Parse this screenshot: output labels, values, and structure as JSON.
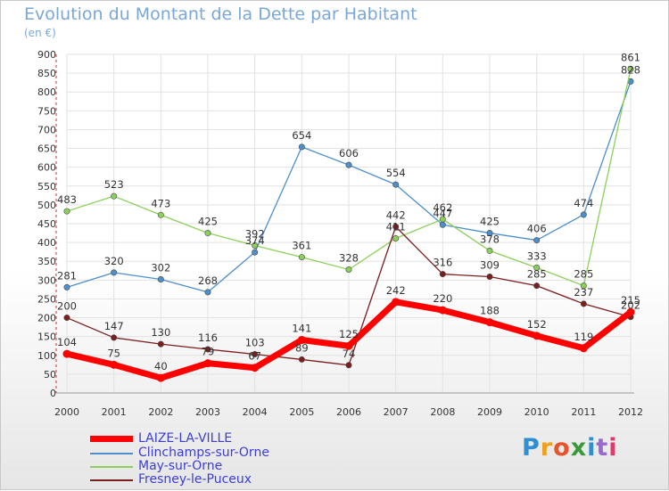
{
  "title": "Evolution du Montant de la Dette par Habitant",
  "unit": "(en €)",
  "logo": "Proxiti",
  "chart_data": {
    "type": "line",
    "title": "Evolution du Montant de la Dette par Habitant",
    "ylabel": "(en €)",
    "xlabel": "",
    "ylim": [
      0,
      900
    ],
    "y_ticks": [
      0,
      50,
      100,
      150,
      200,
      250,
      300,
      350,
      400,
      450,
      500,
      550,
      600,
      650,
      700,
      750,
      800,
      850,
      900
    ],
    "grid": true,
    "legend_position": "bottom-left",
    "x": [
      "2000",
      "2001",
      "2002",
      "2003",
      "2004",
      "2005",
      "2006",
      "2007",
      "2008",
      "2009",
      "2010",
      "2011",
      "2012"
    ],
    "series": [
      {
        "name": "LAIZE-LA-VILLE",
        "color": "#ff0000",
        "values": [
          104,
          75,
          40,
          79,
          67,
          141,
          125,
          242,
          220,
          188,
          152,
          119,
          215
        ],
        "labels": [
          "104",
          "75",
          "40",
          "79",
          "67",
          "141",
          "125",
          "242",
          "220",
          "188",
          "152",
          "119",
          "215"
        ]
      },
      {
        "name": "Clinchamps-sur-Orne",
        "color": "#4d8fcc",
        "values": [
          281,
          320,
          302,
          268,
          374,
          654,
          606,
          554,
          447,
          425,
          406,
          474,
          828
        ],
        "labels": [
          "281",
          "320",
          "302",
          "268",
          "374",
          "654",
          "606",
          "554",
          "447",
          "425",
          "406",
          "474",
          "828"
        ]
      },
      {
        "name": "May-sur-Orne",
        "color": "#8ad05a",
        "values": [
          483,
          523,
          473,
          425,
          392,
          361,
          328,
          411,
          462,
          378,
          333,
          285,
          861
        ],
        "labels": [
          "483",
          "523",
          "473",
          "425",
          "392",
          "361",
          "328",
          "411",
          "462",
          "378",
          "333",
          "285",
          "861"
        ]
      },
      {
        "name": "Fresney-le-Puceux",
        "color": "#7a1e1e",
        "values": [
          200,
          147,
          130,
          116,
          103,
          89,
          74,
          442,
          316,
          309,
          285,
          237,
          202
        ],
        "labels": [
          "200",
          "147",
          "130",
          "116",
          "103",
          "89",
          "74",
          "442",
          "316",
          "309",
          "285",
          "237",
          "202"
        ]
      }
    ]
  }
}
